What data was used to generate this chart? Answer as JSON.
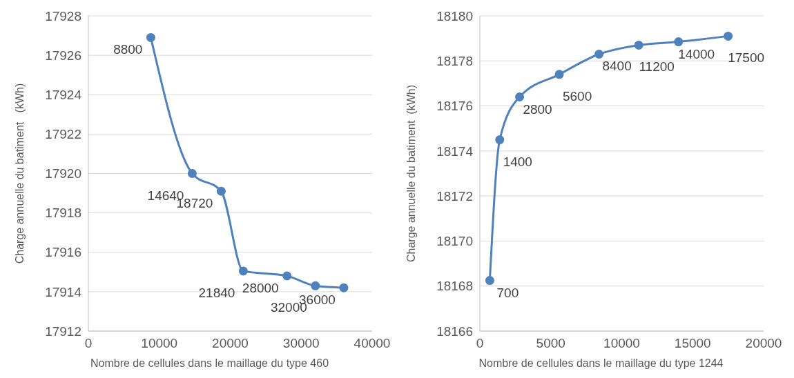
{
  "chart_data": [
    {
      "type": "line",
      "xlabel": "Nombre de cellules dans le maillage du type 460",
      "ylabel": "Charge annuelle du batiment   (kWh)",
      "xlim": [
        0,
        40000
      ],
      "xticks": [
        0,
        10000,
        20000,
        30000,
        40000
      ],
      "ylim": [
        17912,
        17928
      ],
      "yticks": [
        17912,
        17914,
        17916,
        17918,
        17920,
        17922,
        17924,
        17926,
        17928
      ],
      "grid": "y",
      "marker": "circle",
      "series": [
        {
          "color": "#4f81bd",
          "x": [
            8800,
            14640,
            18720,
            21840,
            28000,
            32000,
            36000
          ],
          "values": [
            17926.9,
            17920.0,
            17919.1,
            17915.05,
            17914.8,
            17914.3,
            17914.2
          ]
        }
      ],
      "annotations": [
        {
          "text": "8800",
          "x": 8800,
          "y": 17926.9
        },
        {
          "text": "14640",
          "x": 14640,
          "y": 17920.0
        },
        {
          "text": "18720",
          "x": 18720,
          "y": 17919.1
        },
        {
          "text": "21840",
          "x": 21840,
          "y": 17915.05
        },
        {
          "text": "28000",
          "x": 28000,
          "y": 17914.8
        },
        {
          "text": "32000",
          "x": 32000,
          "y": 17914.3
        },
        {
          "text": "36000",
          "x": 36000,
          "y": 17914.2
        }
      ]
    },
    {
      "type": "line",
      "xlabel": "Nombre de cellules dans le maillage du type 1244",
      "ylabel": "Charge annuelle du batiment  (kWh)",
      "xlim": [
        0,
        20000
      ],
      "xticks": [
        0,
        5000,
        10000,
        15000,
        20000
      ],
      "ylim": [
        18166,
        18180
      ],
      "yticks": [
        18166,
        18168,
        18170,
        18172,
        18174,
        18176,
        18178,
        18180
      ],
      "grid": "y",
      "marker": "circle",
      "series": [
        {
          "color": "#4f81bd",
          "x": [
            700,
            1400,
            2800,
            5600,
            8400,
            11200,
            14000,
            17500
          ],
          "values": [
            18168.25,
            18174.5,
            18176.4,
            18177.4,
            18178.3,
            18178.7,
            18178.85,
            18179.1
          ]
        }
      ],
      "annotations": [
        {
          "text": "700",
          "x": 700,
          "y": 18168.25
        },
        {
          "text": "1400",
          "x": 1400,
          "y": 18174.5
        },
        {
          "text": "2800",
          "x": 2800,
          "y": 18176.4
        },
        {
          "text": "5600",
          "x": 5600,
          "y": 18177.4
        },
        {
          "text": "8400",
          "x": 8400,
          "y": 18178.3
        },
        {
          "text": "11200",
          "x": 11200,
          "y": 18178.7
        },
        {
          "text": "14000",
          "x": 14000,
          "y": 18178.85
        },
        {
          "text": "17500",
          "x": 17500,
          "y": 18179.1
        }
      ]
    }
  ]
}
